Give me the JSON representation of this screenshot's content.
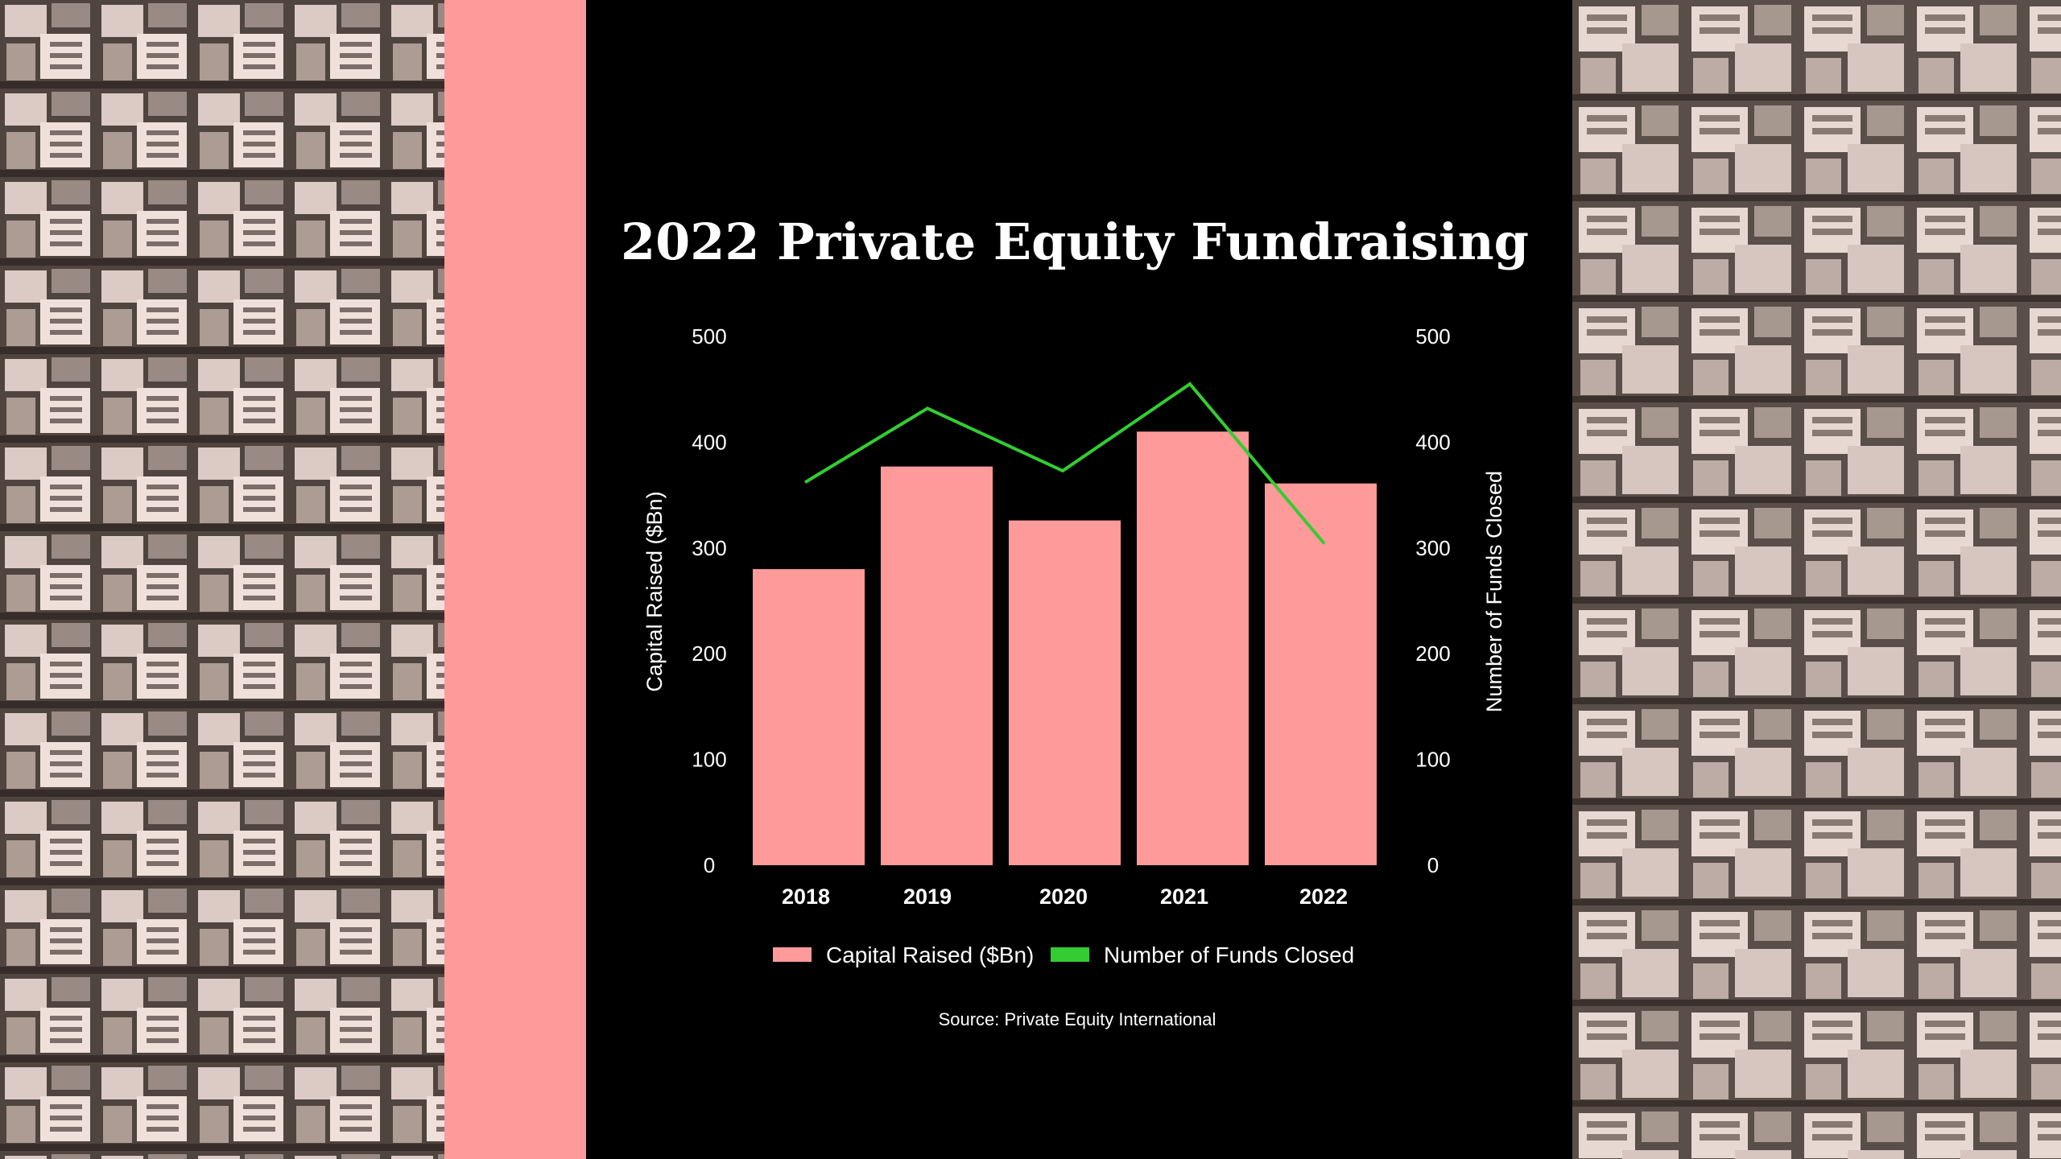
{
  "colors": {
    "accent": "#ff9a9a",
    "line": "#33cc33",
    "panel": "#000000",
    "text": "#ffffff"
  },
  "chart_data": {
    "type": "bar",
    "title": "2022 Private Equity Fundraising",
    "categories": [
      "2018",
      "2019",
      "2020",
      "2021",
      "2022"
    ],
    "series": [
      {
        "name": "Capital Raised ($Bn)",
        "type": "bar",
        "axis": "left",
        "color": "#ff9a9a",
        "values": [
          280,
          377,
          326,
          410,
          361
        ]
      },
      {
        "name": "Number of Funds Closed",
        "type": "line",
        "axis": "right",
        "color": "#33cc33",
        "values": [
          362,
          432,
          373,
          455,
          304
        ]
      }
    ],
    "ylabel": "Capital Raised ($Bn)",
    "y2label": "Number of Funds Closed",
    "ylim": [
      0,
      500
    ],
    "y2lim": [
      0,
      500
    ],
    "yticks": [
      "0",
      "100",
      "200",
      "300",
      "400",
      "500"
    ],
    "y2ticks": [
      "0",
      "100",
      "200",
      "300",
      "400",
      "500"
    ],
    "grid": false,
    "legend_position": "bottom",
    "source": "Source: Private Equity International"
  }
}
